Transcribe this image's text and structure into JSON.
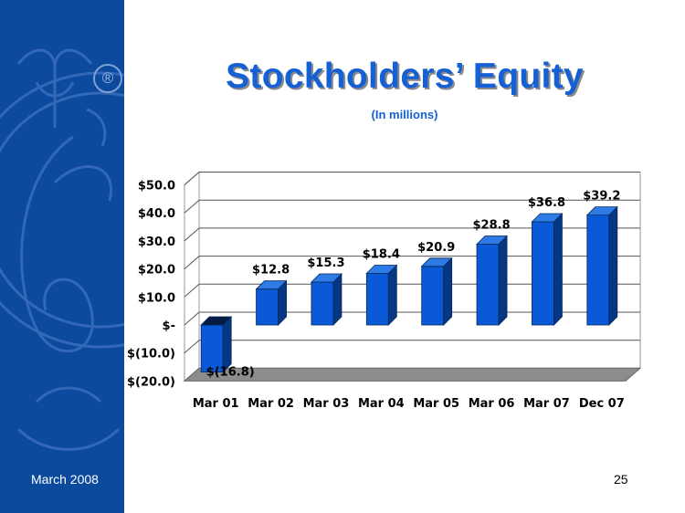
{
  "slide": {
    "title": "Stockholders’ Equity",
    "subtitle": "(In millions)",
    "footer_date": "March 2008",
    "page_number": "25"
  },
  "colors": {
    "sidebar": "#0c4a9e",
    "title": "#1560d4",
    "bar_front": "#0a5ad8",
    "bar_top": "#2f7be6",
    "bar_side": "#063782",
    "floor": "#8c8c8c"
  },
  "chart_data": {
    "type": "bar",
    "categories": [
      "Mar 01",
      "Mar 02",
      "Mar 03",
      "Mar 04",
      "Mar 05",
      "Mar 06",
      "Mar 07",
      "Dec 07"
    ],
    "values": [
      -16.8,
      12.8,
      15.3,
      18.4,
      20.9,
      28.8,
      36.8,
      39.2
    ],
    "data_labels": [
      "$(16.8)",
      "$12.8",
      "$15.3",
      "$18.4",
      "$20.9",
      "$28.8",
      "$36.8",
      "$39.2"
    ],
    "y_tick_values": [
      50,
      40,
      30,
      20,
      10,
      0,
      -10,
      -20
    ],
    "y_tick_labels": [
      "$50.0",
      "$40.0",
      "$30.0",
      "$20.0",
      "$10.0",
      "$-",
      "$(10.0)",
      "$(20.0)"
    ],
    "ylim": [
      -20,
      50
    ],
    "grid": true,
    "title": "",
    "xlabel": "",
    "ylabel": ""
  }
}
